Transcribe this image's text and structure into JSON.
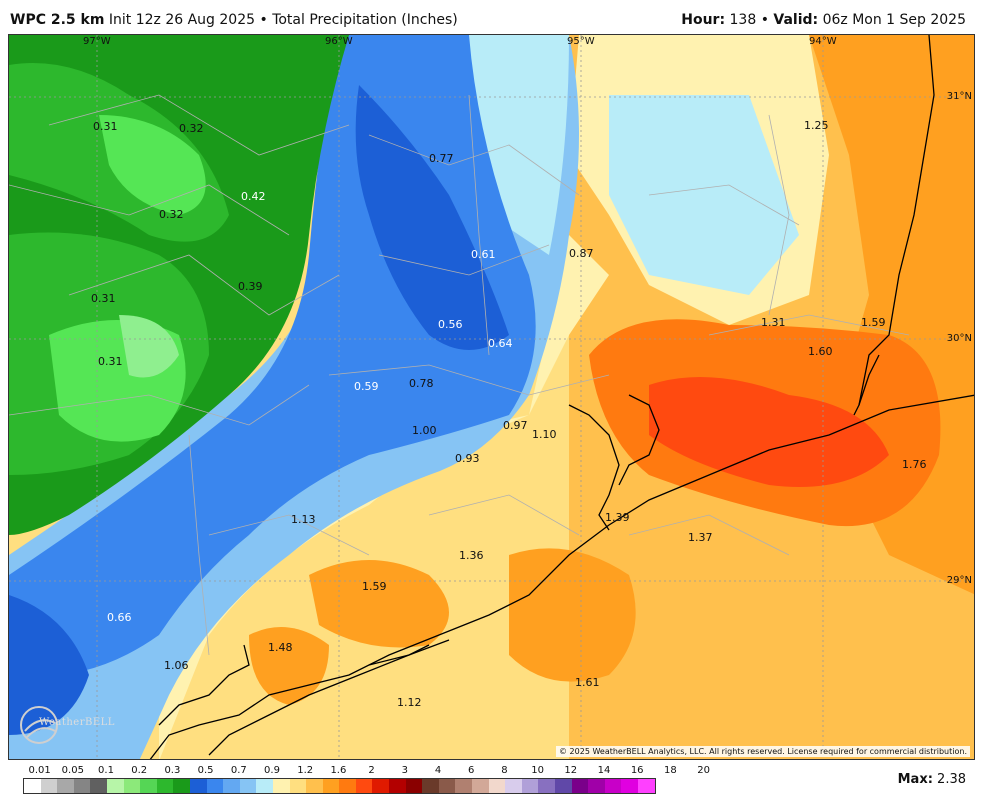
{
  "header": {
    "model": "WPC 2.5 km",
    "init": "Init 12z 26 Aug 2025",
    "separator": "•",
    "product": "Total Precipitation (Inches)",
    "hour_label": "Hour:",
    "hour_value": "138",
    "valid_label": "Valid:",
    "valid_value": "06z Mon 1 Sep 2025"
  },
  "map": {
    "longitude_labels": [
      "97°W",
      "96°W",
      "95°W",
      "94°W"
    ],
    "latitude_labels": [
      "31°N",
      "30°N",
      "29°N"
    ],
    "point_values": [
      "0.31",
      "0.32",
      "0.42",
      "0.32",
      "0.31",
      "0.39",
      "0.31",
      "0.77",
      "0.61",
      "0.87",
      "0.56",
      "0.64",
      "0.59",
      "0.78",
      "1.00",
      "0.97",
      "1.10",
      "0.93",
      "1.25",
      "1.31",
      "1.59",
      "1.60",
      "1.76",
      "1.39",
      "1.37",
      "1.13",
      "1.36",
      "1.59",
      "0.66",
      "1.48",
      "1.06",
      "1.12",
      "1.61"
    ],
    "colors": {
      "green_dark": "#1a9a1a",
      "green": "#2db82d",
      "green_light": "#55e655",
      "green_pale": "#8fef8f",
      "blue_dark": "#1c5fd6",
      "blue": "#3a86ee",
      "blue_light": "#86c4f4",
      "cyan_pale": "#b8ecf8",
      "yellow_pale": "#fff2b0",
      "yellow": "#ffdf80",
      "orange_light": "#ffc04d",
      "orange": "#ffa020",
      "orange_dark": "#ff7a10",
      "red": "#ff4a10"
    }
  },
  "colorbar": {
    "labels": [
      "0.01",
      "0.05",
      "0.1",
      "0.2",
      "0.3",
      "0.5",
      "0.7",
      "0.9",
      "1.2",
      "1.6",
      "2",
      "3",
      "4",
      "6",
      "8",
      "10",
      "12",
      "14",
      "16",
      "18",
      "20"
    ],
    "colors": [
      "#ffffff",
      "#cfcfcf",
      "#a8a8a8",
      "#858585",
      "#606060",
      "#b7f5a8",
      "#8ce97a",
      "#55d655",
      "#2db82d",
      "#1a9a1a",
      "#1c5fd6",
      "#3a86ee",
      "#63a8f2",
      "#86c4f4",
      "#b8ecf8",
      "#fff2b0",
      "#ffdf80",
      "#ffc04d",
      "#ffa020",
      "#ff7a10",
      "#ff4a10",
      "#e01a00",
      "#b30000",
      "#8a0000",
      "#6a3a2a",
      "#8a5a4a",
      "#b08070",
      "#d2a898",
      "#f2d8cc",
      "#d8ccec",
      "#b0a0d8",
      "#8870c0",
      "#6048a8",
      "#7a008a",
      "#a000a8",
      "#c800c8",
      "#e000e0",
      "#ff40ff"
    ]
  },
  "max_label": "Max:",
  "max_value": "2.38",
  "copyright": "© 2025 WeatherBELL Analytics, LLC. All rights reserved. License required for commercial distribution.",
  "logo_text": "WeatherBELL"
}
